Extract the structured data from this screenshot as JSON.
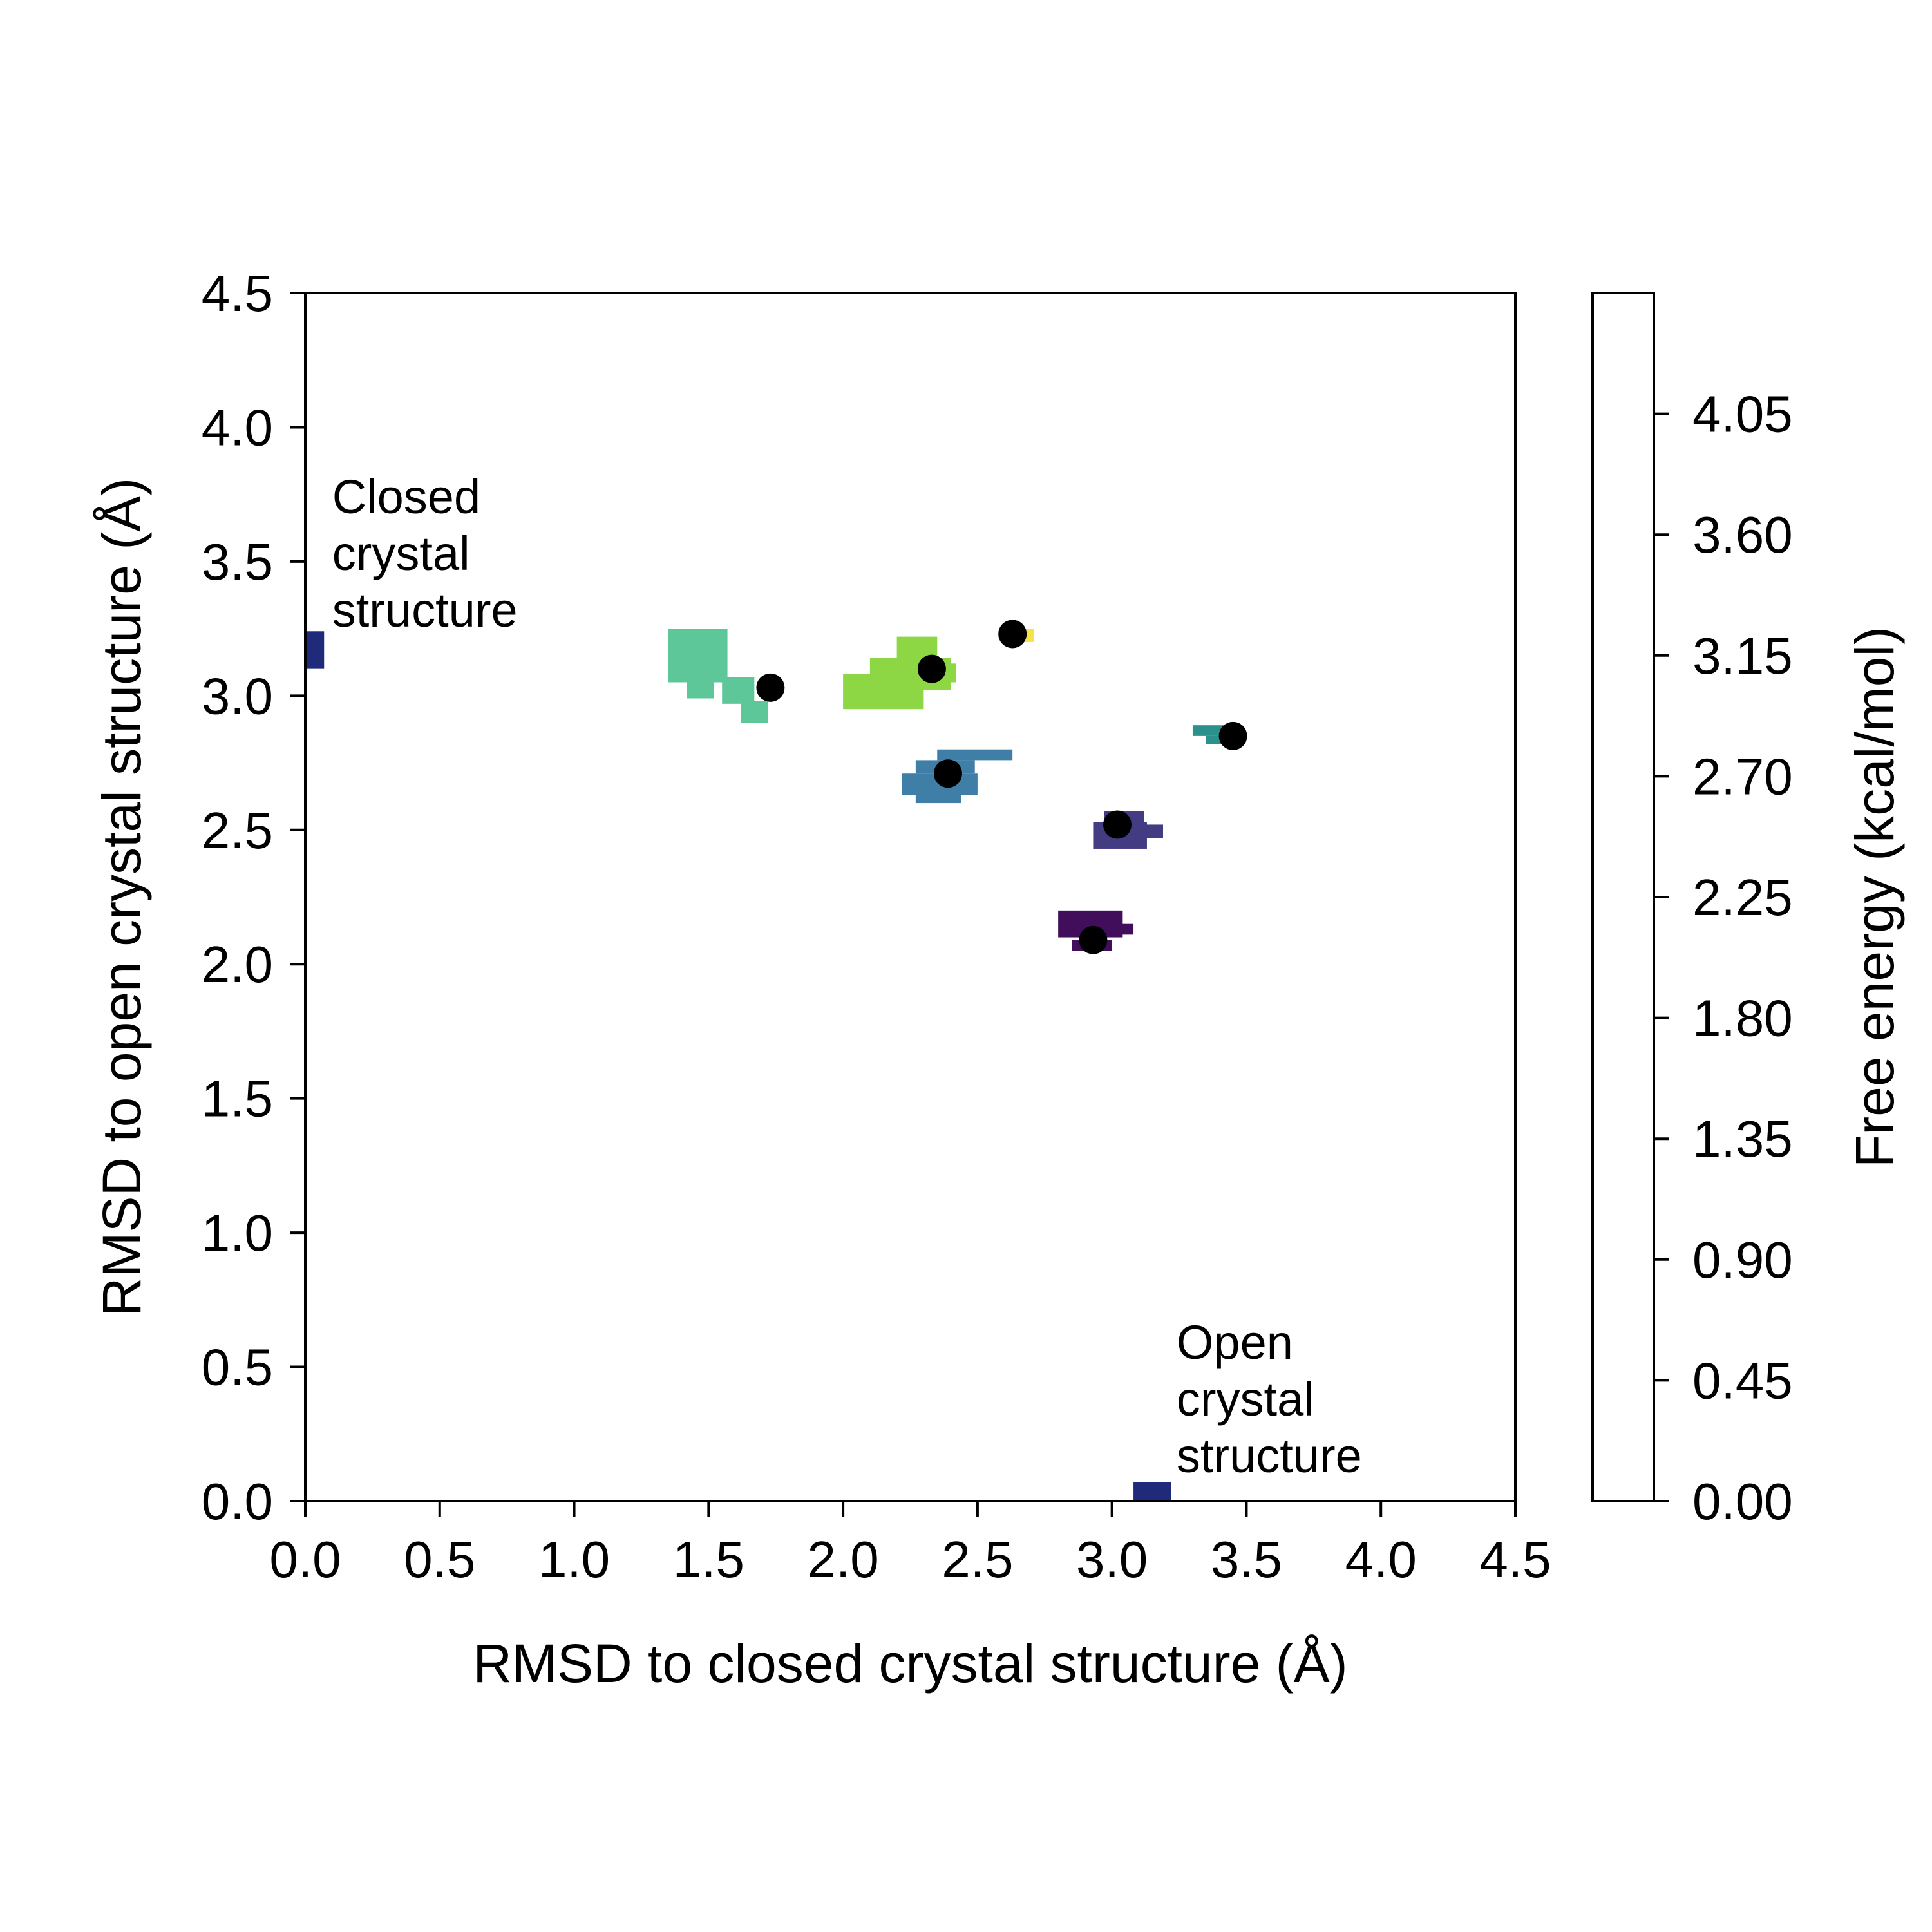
{
  "chart_data": {
    "type": "heatmap",
    "xlabel": "RMSD to closed crystal structure (Å)",
    "ylabel": "RMSD to open crystal structure (Å)",
    "xlim": [
      0,
      4.5
    ],
    "ylim": [
      0,
      4.5
    ],
    "x_ticks": [
      "0.0",
      "0.5",
      "1.0",
      "1.5",
      "2.0",
      "2.5",
      "3.0",
      "3.5",
      "4.0",
      "4.5"
    ],
    "y_ticks": [
      "0.0",
      "0.5",
      "1.0",
      "1.5",
      "2.0",
      "2.5",
      "3.0",
      "3.5",
      "4.0",
      "4.5"
    ],
    "colorbar": {
      "label": "Free energy (kcal/mol)",
      "range": [
        0,
        4.5
      ],
      "ticks": [
        "0.00",
        "0.45",
        "0.90",
        "1.35",
        "1.80",
        "2.25",
        "2.70",
        "3.15",
        "3.60",
        "4.05"
      ],
      "fill": "#ffffff"
    },
    "regions": [
      {
        "name": "closed-crystal",
        "color": "#1f2b7a",
        "cells": [
          [
            0.0,
            3.1,
            0.07,
            0.14
          ]
        ]
      },
      {
        "name": "open-crystal",
        "color": "#1f2b7a",
        "cells": [
          [
            3.08,
            0.0,
            0.14,
            0.07
          ]
        ]
      },
      {
        "name": "basin-a",
        "color": "#5ec79a",
        "cells": [
          [
            1.35,
            3.05,
            0.22,
            0.2
          ],
          [
            1.45,
            3.17,
            0.1,
            0.07
          ],
          [
            1.55,
            2.97,
            0.12,
            0.1
          ],
          [
            1.62,
            2.9,
            0.1,
            0.08
          ],
          [
            1.42,
            2.99,
            0.1,
            0.06
          ]
        ]
      },
      {
        "name": "basin-b",
        "color": "#8cd743",
        "cells": [
          [
            2.0,
            2.95,
            0.3,
            0.13
          ],
          [
            2.1,
            3.02,
            0.3,
            0.12
          ],
          [
            2.2,
            3.12,
            0.15,
            0.1
          ],
          [
            2.3,
            3.05,
            0.12,
            0.07
          ]
        ]
      },
      {
        "name": "basin-c",
        "color": "#3f7ea6",
        "cells": [
          [
            2.22,
            2.63,
            0.28,
            0.08
          ],
          [
            2.27,
            2.71,
            0.22,
            0.05
          ],
          [
            2.35,
            2.76,
            0.28,
            0.04
          ],
          [
            2.27,
            2.6,
            0.17,
            0.03
          ]
        ]
      },
      {
        "name": "basin-d",
        "color": "#443c83",
        "cells": [
          [
            2.93,
            2.43,
            0.2,
            0.1
          ],
          [
            2.97,
            2.53,
            0.15,
            0.04
          ],
          [
            3.03,
            2.47,
            0.16,
            0.05
          ]
        ]
      },
      {
        "name": "basin-e",
        "color": "#410e5b",
        "cells": [
          [
            2.8,
            2.1,
            0.24,
            0.1
          ],
          [
            2.85,
            2.05,
            0.15,
            0.04
          ],
          [
            2.92,
            2.11,
            0.16,
            0.04
          ]
        ]
      },
      {
        "name": "basin-f",
        "color": "#2a918d",
        "cells": [
          [
            3.3,
            2.85,
            0.16,
            0.04
          ],
          [
            3.35,
            2.82,
            0.08,
            0.03
          ]
        ]
      },
      {
        "name": "basin-g",
        "color": "#f4e44a",
        "cells": [
          [
            2.66,
            3.2,
            0.05,
            0.05
          ]
        ]
      }
    ],
    "points": [
      {
        "x": 1.73,
        "y": 3.03
      },
      {
        "x": 2.33,
        "y": 3.1
      },
      {
        "x": 2.63,
        "y": 3.23
      },
      {
        "x": 3.45,
        "y": 2.85
      },
      {
        "x": 2.39,
        "y": 2.71
      },
      {
        "x": 3.02,
        "y": 2.52
      },
      {
        "x": 2.93,
        "y": 2.09
      }
    ],
    "annotations": [
      {
        "name": "closed-label",
        "lines": [
          "Closed",
          "crystal",
          "structure"
        ],
        "x": 0.1,
        "y": 3.68
      },
      {
        "name": "open-label",
        "lines": [
          "Open",
          "crystal",
          "structure"
        ],
        "x": 3.24,
        "y": 0.53
      }
    ],
    "grid": false,
    "legend": "none"
  }
}
